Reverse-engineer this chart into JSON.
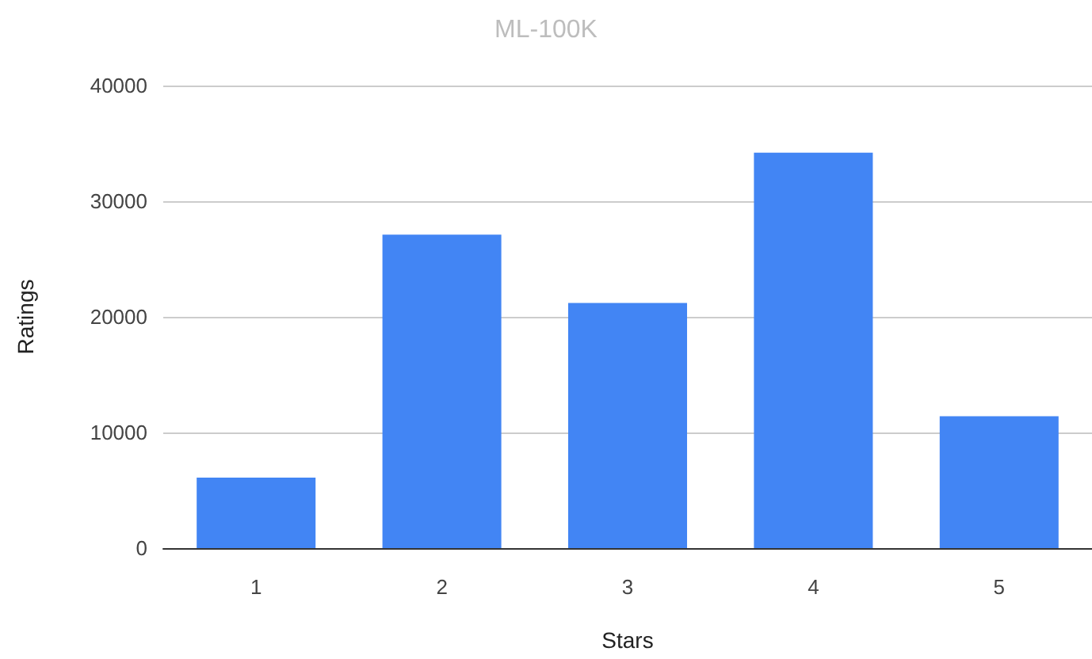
{
  "chart_data": {
    "type": "bar",
    "title": "ML-100K",
    "xlabel": "Stars",
    "ylabel": "Ratings",
    "categories": [
      "1",
      "2",
      "3",
      "4",
      "5"
    ],
    "values": [
      6100,
      27100,
      21200,
      34200,
      11400
    ],
    "color": "#4285f4",
    "ylim": [
      0,
      40000
    ],
    "yticks": [
      0,
      10000,
      20000,
      30000,
      40000
    ],
    "grid": "y"
  }
}
